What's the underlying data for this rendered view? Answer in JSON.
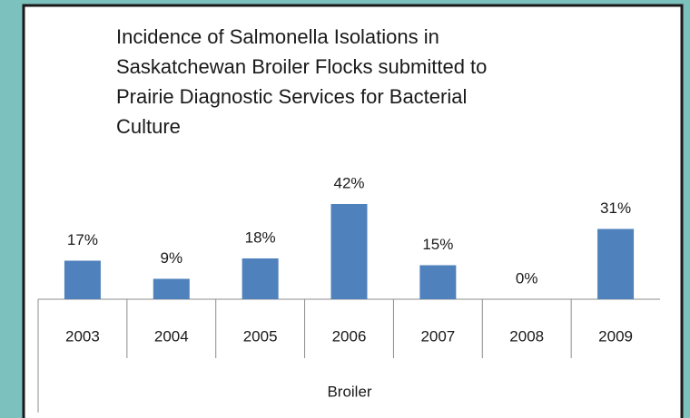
{
  "chart_data": {
    "type": "bar",
    "title": [
      "Incidence of Salmonella Isolations in",
      "Saskatchewan Broiler Flocks submitted to",
      "Prairie Diagnostic Services for Bacterial",
      "Culture"
    ],
    "categories": [
      "2003",
      "2004",
      "2005",
      "2006",
      "2007",
      "2008",
      "2009"
    ],
    "values": [
      17,
      9,
      18,
      42,
      15,
      0,
      31
    ],
    "value_labels": [
      "17%",
      "9%",
      "18%",
      "42%",
      "15%",
      "0%",
      "31%"
    ],
    "group_label": "Broiler",
    "color": "#4f81bd"
  }
}
